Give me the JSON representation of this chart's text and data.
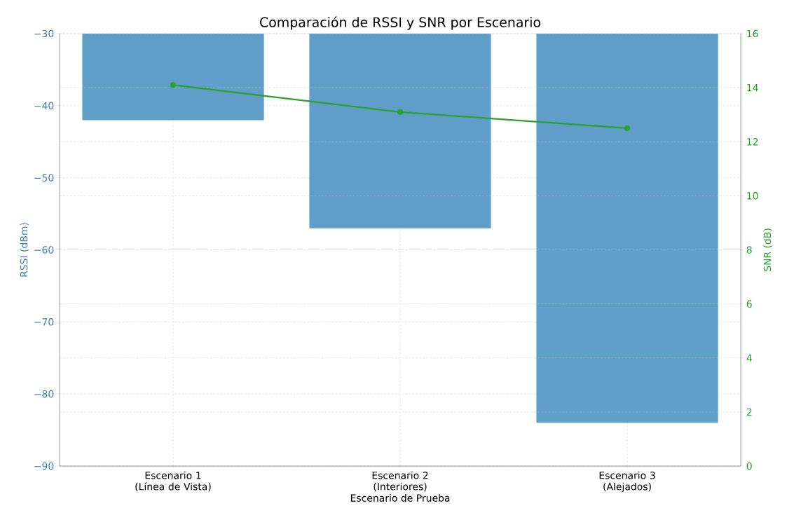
{
  "chart_data": {
    "type": "bar",
    "title": "Comparación de RSSI y SNR por Escenario",
    "xlabel": "Escenario de Prueba",
    "ylabel": "RSSI (dBm)",
    "y2label": "SNR (dB)",
    "categories": [
      "Escenario 1 (Línea de Vista)",
      "Escenario 2 (Interiores)",
      "Escenario 3 (Alejados)"
    ],
    "series": [
      {
        "color": "#5f9ec9",
        "values": [
          -42,
          -57,
          -84
        ]
      },
      {
        "type": "line",
        "axis": "y2",
        "color": "#2ca02c",
        "marker": "circle",
        "values": [
          14.1,
          13.1,
          12.5
        ]
      }
    ],
    "ylim": [
      -90,
      -30
    ],
    "yticks": [
      {
        "value": -90,
        "label": "−90"
      },
      {
        "value": -80,
        "label": "−80"
      },
      {
        "value": -70,
        "label": "−70"
      },
      {
        "value": -60,
        "label": "−60"
      },
      {
        "value": -50,
        "label": "−50"
      },
      {
        "value": -40,
        "label": "−40"
      },
      {
        "value": -30,
        "label": "−30"
      }
    ],
    "y2lim": [
      0,
      16
    ],
    "y2ticks": [
      0,
      2,
      4,
      6,
      8,
      10,
      12,
      14,
      16
    ],
    "grid": true
  }
}
